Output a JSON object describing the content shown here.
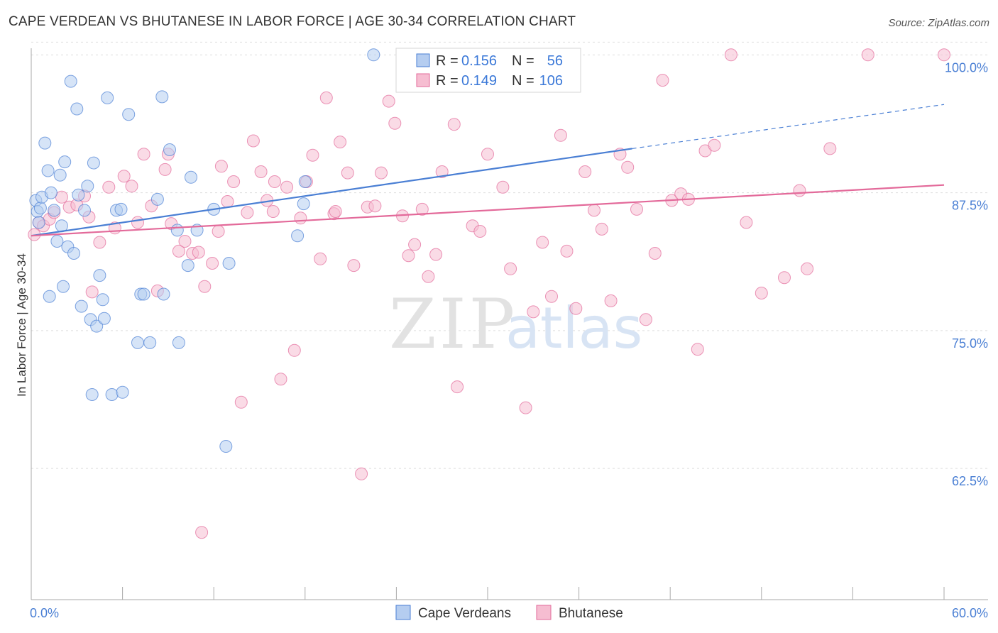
{
  "title": "CAPE VERDEAN VS BHUTANESE IN LABOR FORCE | AGE 30-34 CORRELATION CHART",
  "source": "Source: ZipAtlas.com",
  "colors": {
    "blue": "#4a7fd4",
    "blue_fill": "#b5cdf0",
    "pink": "#e36a9a",
    "pink_fill": "#f6bdd1",
    "grid": "#dddddd",
    "axis": "#aaaaaa"
  },
  "chart_data": {
    "type": "scatter",
    "xlabel": "",
    "ylabel": "In Labor Force | Age 30-34",
    "xlim": [
      0,
      60
    ],
    "ylim": [
      50.6,
      100.6
    ],
    "x_ticks": [
      "0.0%",
      "60.0%"
    ],
    "y_ticks": [
      {
        "value": 100.0,
        "label": "100.0%"
      },
      {
        "value": 87.5,
        "label": "87.5%"
      },
      {
        "value": 75.0,
        "label": "75.0%"
      },
      {
        "value": 62.5,
        "label": "62.5%"
      }
    ],
    "legend": {
      "position": "top-center",
      "rows": [
        {
          "r_label": "R =",
          "r_value": "0.156",
          "n_label": "N =",
          "n_value": "56"
        },
        {
          "r_label": "R =",
          "r_value": "0.149",
          "n_label": "N =",
          "n_value": "106"
        }
      ]
    },
    "watermark": {
      "zip": "ZIP",
      "atlas": "atlas"
    },
    "series": [
      {
        "name": "Cape Verdeans",
        "color": "blue",
        "trend": {
          "x0": 0.0,
          "y0": 83.6,
          "x1": 39.5,
          "y1": 91.5,
          "dash_x1": 60.0,
          "dash_y1": 95.5
        },
        "points": [
          [
            0.3,
            86.8
          ],
          [
            0.4,
            85.8
          ],
          [
            0.5,
            84.8
          ],
          [
            0.6,
            86.1
          ],
          [
            0.7,
            87.1
          ],
          [
            0.9,
            92.0
          ],
          [
            1.1,
            89.5
          ],
          [
            1.3,
            87.5
          ],
          [
            1.5,
            85.9
          ],
          [
            1.7,
            83.1
          ],
          [
            1.9,
            89.1
          ],
          [
            2.0,
            84.5
          ],
          [
            2.2,
            90.3
          ],
          [
            2.4,
            82.6
          ],
          [
            2.6,
            97.6
          ],
          [
            2.8,
            82.0
          ],
          [
            3.0,
            95.1
          ],
          [
            3.1,
            87.3
          ],
          [
            3.3,
            77.2
          ],
          [
            3.5,
            85.9
          ],
          [
            3.7,
            88.1
          ],
          [
            3.9,
            76.0
          ],
          [
            4.1,
            90.2
          ],
          [
            4.3,
            75.4
          ],
          [
            4.5,
            80.0
          ],
          [
            4.7,
            77.8
          ],
          [
            4.8,
            76.1
          ],
          [
            5.0,
            96.1
          ],
          [
            5.3,
            69.2
          ],
          [
            5.6,
            85.9
          ],
          [
            5.9,
            86.0
          ],
          [
            6.4,
            94.6
          ],
          [
            7.0,
            73.9
          ],
          [
            7.2,
            78.3
          ],
          [
            7.4,
            78.3
          ],
          [
            7.8,
            73.9
          ],
          [
            8.3,
            86.9
          ],
          [
            8.6,
            96.2
          ],
          [
            9.1,
            91.4
          ],
          [
            9.7,
            73.9
          ],
          [
            10.3,
            80.9
          ],
          [
            10.5,
            88.9
          ],
          [
            10.9,
            84.1
          ],
          [
            12.0,
            86.0
          ],
          [
            12.8,
            64.5
          ],
          [
            13.0,
            81.1
          ],
          [
            17.5,
            83.6
          ],
          [
            17.9,
            86.5
          ],
          [
            18.0,
            88.5
          ],
          [
            22.5,
            100.0
          ],
          [
            1.2,
            78.1
          ],
          [
            2.1,
            79.0
          ],
          [
            4.0,
            69.2
          ],
          [
            6.0,
            69.4
          ],
          [
            8.7,
            78.3
          ],
          [
            9.6,
            84.1
          ]
        ]
      },
      {
        "name": "Bhutanese",
        "color": "pink",
        "trend": {
          "x0": 0.0,
          "y0": 83.6,
          "x1": 60.0,
          "y1": 88.2
        },
        "points": [
          [
            0.2,
            83.7
          ],
          [
            0.5,
            84.8
          ],
          [
            0.8,
            84.5
          ],
          [
            1.2,
            85.1
          ],
          [
            1.5,
            85.7
          ],
          [
            2.0,
            87.1
          ],
          [
            2.5,
            86.2
          ],
          [
            3.0,
            86.4
          ],
          [
            3.5,
            87.2
          ],
          [
            4.0,
            78.5
          ],
          [
            4.5,
            83.0
          ],
          [
            5.1,
            88.0
          ],
          [
            5.5,
            84.3
          ],
          [
            6.1,
            89.0
          ],
          [
            6.6,
            88.1
          ],
          [
            7.0,
            84.8
          ],
          [
            7.4,
            91.0
          ],
          [
            7.9,
            86.3
          ],
          [
            8.3,
            78.6
          ],
          [
            8.8,
            89.6
          ],
          [
            9.2,
            84.7
          ],
          [
            9.7,
            82.2
          ],
          [
            10.1,
            83.1
          ],
          [
            10.6,
            82.0
          ],
          [
            11.0,
            82.1
          ],
          [
            11.4,
            79.0
          ],
          [
            11.9,
            81.1
          ],
          [
            12.3,
            84.0
          ],
          [
            12.9,
            86.7
          ],
          [
            13.3,
            88.5
          ],
          [
            13.8,
            68.5
          ],
          [
            14.2,
            85.7
          ],
          [
            14.6,
            92.2
          ],
          [
            15.1,
            89.4
          ],
          [
            15.5,
            86.8
          ],
          [
            15.9,
            85.8
          ],
          [
            16.4,
            70.6
          ],
          [
            16.8,
            88.0
          ],
          [
            17.3,
            73.2
          ],
          [
            17.7,
            85.2
          ],
          [
            18.1,
            88.5
          ],
          [
            18.5,
            90.9
          ],
          [
            19.0,
            81.5
          ],
          [
            19.4,
            96.1
          ],
          [
            19.9,
            85.6
          ],
          [
            20.3,
            92.1
          ],
          [
            20.8,
            89.3
          ],
          [
            21.2,
            80.9
          ],
          [
            21.7,
            62.0
          ],
          [
            22.1,
            86.2
          ],
          [
            22.6,
            86.3
          ],
          [
            23.0,
            89.3
          ],
          [
            23.5,
            95.8
          ],
          [
            23.9,
            93.8
          ],
          [
            24.4,
            85.4
          ],
          [
            24.8,
            81.8
          ],
          [
            25.2,
            82.8
          ],
          [
            25.7,
            86.0
          ],
          [
            26.1,
            79.9
          ],
          [
            26.6,
            81.9
          ],
          [
            27.0,
            89.4
          ],
          [
            28.0,
            69.9
          ],
          [
            29.0,
            84.5
          ],
          [
            29.5,
            84.0
          ],
          [
            30.0,
            91.0
          ],
          [
            31.0,
            88.0
          ],
          [
            31.5,
            80.6
          ],
          [
            32.5,
            68.0
          ],
          [
            33.0,
            76.7
          ],
          [
            33.6,
            83.0
          ],
          [
            34.2,
            78.1
          ],
          [
            34.8,
            92.7
          ],
          [
            35.2,
            82.2
          ],
          [
            35.8,
            77.0
          ],
          [
            36.4,
            89.4
          ],
          [
            37.0,
            85.9
          ],
          [
            37.5,
            84.2
          ],
          [
            38.1,
            77.7
          ],
          [
            38.7,
            91.0
          ],
          [
            39.2,
            89.8
          ],
          [
            39.8,
            86.0
          ],
          [
            40.4,
            76.0
          ],
          [
            41.0,
            82.0
          ],
          [
            41.5,
            97.7
          ],
          [
            42.1,
            86.8
          ],
          [
            42.7,
            87.4
          ],
          [
            43.2,
            86.9
          ],
          [
            43.8,
            73.3
          ],
          [
            44.3,
            91.3
          ],
          [
            44.9,
            91.8
          ],
          [
            46.0,
            100.0
          ],
          [
            47.0,
            84.8
          ],
          [
            48.0,
            78.4
          ],
          [
            49.5,
            79.8
          ],
          [
            50.5,
            87.7
          ],
          [
            51.0,
            80.6
          ],
          [
            52.5,
            91.5
          ],
          [
            55.0,
            100.0
          ],
          [
            60.0,
            100.0
          ],
          [
            3.8,
            85.3
          ],
          [
            9.0,
            91.0
          ],
          [
            12.5,
            89.9
          ],
          [
            16.0,
            88.5
          ],
          [
            20.0,
            85.8
          ],
          [
            11.2,
            56.7
          ],
          [
            27.8,
            93.7
          ]
        ]
      }
    ]
  }
}
